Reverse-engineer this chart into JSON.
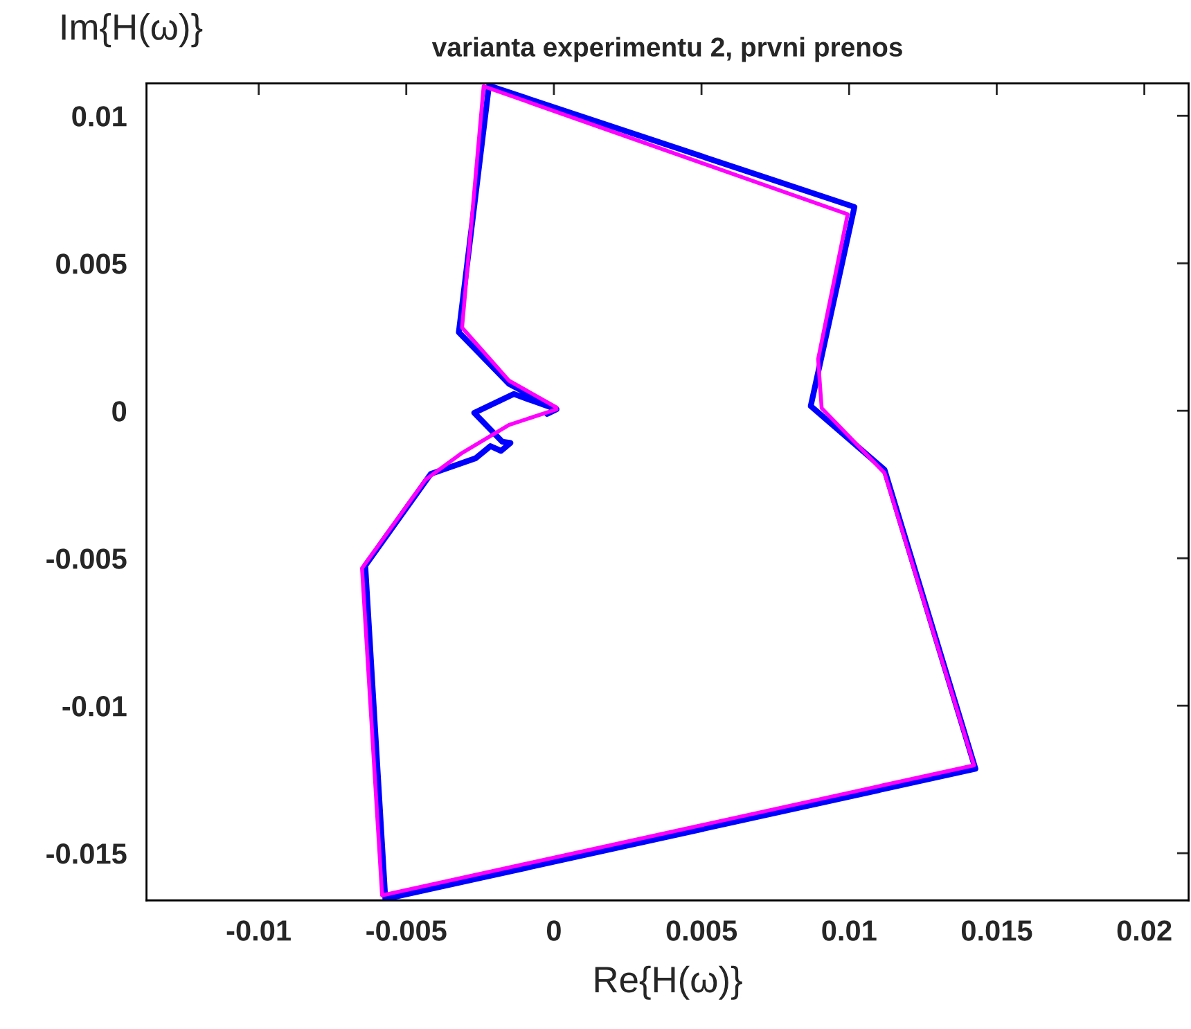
{
  "chart_data": {
    "type": "line",
    "title": "varianta experimentu 2, prvni prenos",
    "xlabel": "Re{H(ω)}",
    "ylabel": "Im{H(ω)}",
    "xlim": [
      -0.0138,
      0.0215
    ],
    "ylim": [
      -0.0166,
      0.0111
    ],
    "xticks": [
      -0.01,
      -0.005,
      0,
      0.005,
      0.01,
      0.015,
      0.02
    ],
    "yticks": [
      -0.015,
      -0.01,
      -0.005,
      0,
      0.005,
      0.01
    ],
    "grid": false,
    "legend": false,
    "series": [
      {
        "color": "#0000ff",
        "x": [
          9e-05,
          -0.00152,
          -0.00322,
          -0.0022,
          0.01018,
          0.0087,
          0.0112,
          0.01428,
          -0.00571,
          -0.00639,
          -0.00417,
          -0.00265,
          -0.00215,
          -0.00179,
          -0.00147,
          -0.00175,
          -0.0027,
          -0.00136,
          -0.00073,
          9e-05,
          -0.00023
        ],
        "values": [
          5e-05,
          0.00091,
          0.00266,
          0.01102,
          0.00691,
          0.00016,
          -0.002,
          -0.01214,
          -0.01655,
          -0.00525,
          -0.00214,
          -0.00161,
          -0.0012,
          -0.00136,
          -0.00109,
          -0.00105,
          -7e-05,
          0.00057,
          0.00034,
          5e-05,
          -0.00011
        ]
      },
      {
        "color": "#ff00ff",
        "x": [
          9e-05,
          -0.00152,
          -0.00311,
          -0.00238,
          0.00995,
          0.00895,
          0.00907,
          0.0112,
          0.01423,
          -0.00582,
          -0.0065,
          -0.00435,
          -0.00311,
          -0.00152,
          9e-05
        ],
        "values": [
          0.00011,
          0.00102,
          0.00282,
          0.011,
          0.00666,
          0.00175,
          9e-05,
          -0.00211,
          -0.01202,
          -0.01643,
          -0.00534,
          -0.00234,
          -0.00143,
          -0.00048,
          5e-05
        ]
      }
    ]
  }
}
